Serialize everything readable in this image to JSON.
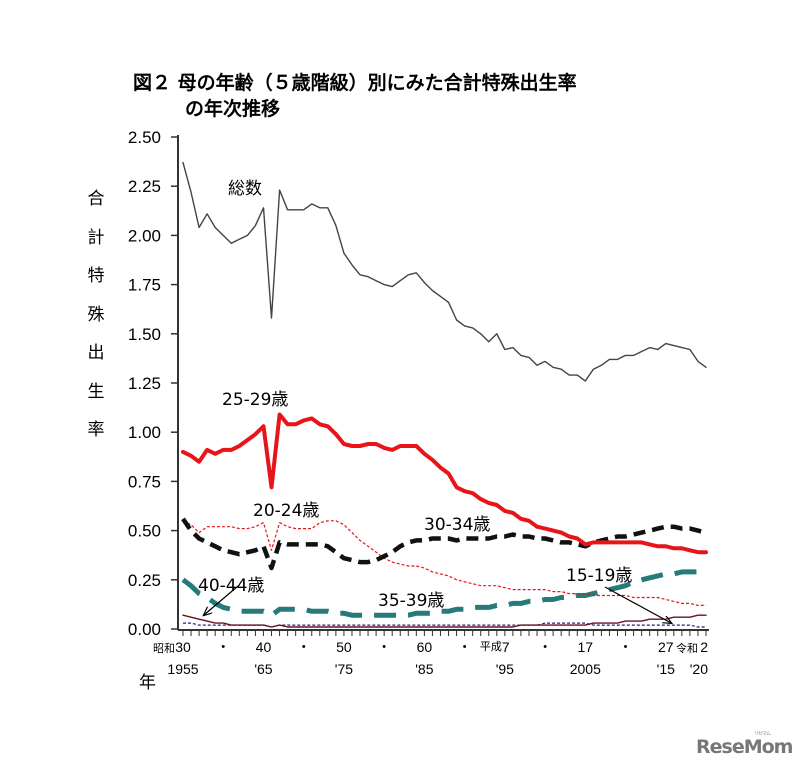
{
  "page": {
    "title_line1": "図２ 母の年齢（５歳階級）別にみた合計特殊出生率",
    "title_line2": "の年次推移",
    "y_axis_label_chars": [
      "合",
      "計",
      "特",
      "殊",
      "出",
      "生",
      "率"
    ],
    "x_axis_unit_label": "年",
    "logo_text": "ReseMom",
    "logo_ruby": "リセマム"
  },
  "chart_data": {
    "type": "line",
    "title": "図２ 母の年齢（５歳階級）別にみた合計特殊出生率の年次推移",
    "xlabel": "年",
    "ylabel": "合計特殊出生率",
    "ylim": [
      0,
      2.5
    ],
    "xlim": [
      1955,
      2020
    ],
    "y_ticks": [
      "0.00",
      "0.25",
      "0.50",
      "0.75",
      "1.00",
      "1.25",
      "1.50",
      "1.75",
      "2.00",
      "2.25",
      "2.50"
    ],
    "y_tick_values": [
      0,
      0.25,
      0.5,
      0.75,
      1.0,
      1.25,
      1.5,
      1.75,
      2.0,
      2.25,
      2.5
    ],
    "x_ticks_era": [
      {
        "year": 1955,
        "era_prefix": "昭和",
        "label": "30",
        "western": "1955"
      },
      {
        "year": 1960,
        "label": "・"
      },
      {
        "year": 1965,
        "label": "40",
        "western": "'65"
      },
      {
        "year": 1970,
        "label": "・"
      },
      {
        "year": 1975,
        "label": "50",
        "western": "'75"
      },
      {
        "year": 1980,
        "label": "・"
      },
      {
        "year": 1985,
        "label": "60",
        "western": "'85"
      },
      {
        "year": 1990,
        "label": "・"
      },
      {
        "year": 1995,
        "era_prefix": "平成",
        "label": "7",
        "western": "'95"
      },
      {
        "year": 2000,
        "label": "・"
      },
      {
        "year": 2005,
        "label": "17",
        "western": "2005"
      },
      {
        "year": 2010,
        "label": "・"
      },
      {
        "year": 2015,
        "label": "27",
        "western": "'15"
      },
      {
        "year": 2020,
        "era_prefix": "令和",
        "label": "2",
        "western": "'20"
      }
    ],
    "x": [
      1955,
      1956,
      1957,
      1958,
      1959,
      1960,
      1961,
      1962,
      1963,
      1964,
      1965,
      1966,
      1967,
      1968,
      1969,
      1970,
      1971,
      1972,
      1973,
      1974,
      1975,
      1976,
      1977,
      1978,
      1979,
      1980,
      1981,
      1982,
      1983,
      1984,
      1985,
      1986,
      1987,
      1988,
      1989,
      1990,
      1991,
      1992,
      1993,
      1994,
      1995,
      1996,
      1997,
      1998,
      1999,
      2000,
      2001,
      2002,
      2003,
      2004,
      2005,
      2006,
      2007,
      2008,
      2009,
      2010,
      2011,
      2012,
      2013,
      2014,
      2015,
      2016,
      2017,
      2018,
      2019,
      2020
    ],
    "series": [
      {
        "name": "総数",
        "label": "総数",
        "color": "#444444",
        "style": "solid-thin",
        "values": [
          2.37,
          2.22,
          2.04,
          2.11,
          2.04,
          2.0,
          1.96,
          1.98,
          2.0,
          2.05,
          2.14,
          1.58,
          2.23,
          2.13,
          2.13,
          2.13,
          2.16,
          2.14,
          2.14,
          2.05,
          1.91,
          1.85,
          1.8,
          1.79,
          1.77,
          1.75,
          1.74,
          1.77,
          1.8,
          1.81,
          1.76,
          1.72,
          1.69,
          1.66,
          1.57,
          1.54,
          1.53,
          1.5,
          1.46,
          1.5,
          1.42,
          1.43,
          1.39,
          1.38,
          1.34,
          1.36,
          1.33,
          1.32,
          1.29,
          1.29,
          1.26,
          1.32,
          1.34,
          1.37,
          1.37,
          1.39,
          1.39,
          1.41,
          1.43,
          1.42,
          1.45,
          1.44,
          1.43,
          1.42,
          1.36,
          1.33
        ]
      },
      {
        "name": "25-29歳",
        "label": "25-29歳",
        "color": "#e8141a",
        "style": "solid-thick",
        "values": [
          0.9,
          0.88,
          0.85,
          0.91,
          0.89,
          0.91,
          0.91,
          0.93,
          0.96,
          0.99,
          1.03,
          0.72,
          1.09,
          1.04,
          1.04,
          1.06,
          1.07,
          1.04,
          1.03,
          0.99,
          0.94,
          0.93,
          0.93,
          0.94,
          0.94,
          0.92,
          0.91,
          0.93,
          0.93,
          0.93,
          0.89,
          0.86,
          0.82,
          0.79,
          0.72,
          0.7,
          0.69,
          0.66,
          0.64,
          0.63,
          0.6,
          0.59,
          0.56,
          0.55,
          0.52,
          0.51,
          0.5,
          0.49,
          0.47,
          0.46,
          0.43,
          0.44,
          0.44,
          0.44,
          0.44,
          0.44,
          0.44,
          0.44,
          0.43,
          0.42,
          0.42,
          0.41,
          0.41,
          0.4,
          0.39,
          0.39
        ]
      },
      {
        "name": "20-24歳",
        "label": "20-24歳",
        "color": "#e8141a",
        "style": "dashed-thin",
        "values": [
          0.55,
          0.53,
          0.49,
          0.52,
          0.52,
          0.52,
          0.52,
          0.51,
          0.51,
          0.52,
          0.54,
          0.4,
          0.54,
          0.52,
          0.51,
          0.51,
          0.51,
          0.54,
          0.55,
          0.55,
          0.53,
          0.49,
          0.45,
          0.42,
          0.39,
          0.36,
          0.34,
          0.33,
          0.32,
          0.32,
          0.31,
          0.29,
          0.28,
          0.27,
          0.25,
          0.24,
          0.23,
          0.22,
          0.22,
          0.22,
          0.21,
          0.2,
          0.2,
          0.2,
          0.2,
          0.2,
          0.19,
          0.19,
          0.18,
          0.18,
          0.18,
          0.17,
          0.17,
          0.17,
          0.17,
          0.17,
          0.16,
          0.16,
          0.16,
          0.16,
          0.15,
          0.14,
          0.13,
          0.13,
          0.12,
          0.12
        ]
      },
      {
        "name": "30-34歳",
        "label": "30-34歳",
        "color": "#111111",
        "style": "dashed-thick",
        "values": [
          0.56,
          0.5,
          0.46,
          0.44,
          0.42,
          0.4,
          0.39,
          0.38,
          0.39,
          0.4,
          0.42,
          0.31,
          0.44,
          0.43,
          0.43,
          0.43,
          0.43,
          0.43,
          0.42,
          0.39,
          0.36,
          0.35,
          0.34,
          0.34,
          0.35,
          0.37,
          0.39,
          0.42,
          0.44,
          0.45,
          0.45,
          0.46,
          0.46,
          0.46,
          0.45,
          0.46,
          0.46,
          0.46,
          0.46,
          0.47,
          0.47,
          0.48,
          0.47,
          0.47,
          0.46,
          0.46,
          0.45,
          0.44,
          0.44,
          0.43,
          0.42,
          0.44,
          0.45,
          0.46,
          0.47,
          0.47,
          0.48,
          0.49,
          0.5,
          0.51,
          0.52,
          0.52,
          0.51,
          0.51,
          0.5,
          0.49
        ]
      },
      {
        "name": "35-39歳",
        "label": "35-39歳",
        "color": "#267a7a",
        "style": "longdash-thick",
        "values": [
          0.25,
          0.22,
          0.18,
          0.16,
          0.13,
          0.11,
          0.1,
          0.09,
          0.09,
          0.09,
          0.09,
          0.07,
          0.1,
          0.1,
          0.1,
          0.1,
          0.09,
          0.09,
          0.09,
          0.08,
          0.08,
          0.07,
          0.07,
          0.07,
          0.07,
          0.07,
          0.07,
          0.07,
          0.07,
          0.08,
          0.08,
          0.08,
          0.09,
          0.09,
          0.1,
          0.1,
          0.11,
          0.11,
          0.11,
          0.12,
          0.12,
          0.13,
          0.13,
          0.14,
          0.14,
          0.15,
          0.15,
          0.16,
          0.16,
          0.17,
          0.17,
          0.18,
          0.19,
          0.2,
          0.21,
          0.22,
          0.24,
          0.25,
          0.26,
          0.27,
          0.28,
          0.28,
          0.29,
          0.29,
          0.29,
          0.29
        ]
      },
      {
        "name": "40-44歳",
        "label": "40-44歳",
        "color": "#6b1020",
        "style": "solid-thin",
        "values": [
          0.07,
          0.06,
          0.05,
          0.04,
          0.03,
          0.03,
          0.02,
          0.02,
          0.02,
          0.02,
          0.02,
          0.01,
          0.02,
          0.01,
          0.01,
          0.01,
          0.01,
          0.01,
          0.01,
          0.01,
          0.01,
          0.01,
          0.01,
          0.01,
          0.01,
          0.01,
          0.01,
          0.01,
          0.01,
          0.01,
          0.01,
          0.01,
          0.01,
          0.01,
          0.01,
          0.01,
          0.01,
          0.01,
          0.01,
          0.01,
          0.01,
          0.01,
          0.02,
          0.02,
          0.02,
          0.02,
          0.02,
          0.02,
          0.02,
          0.02,
          0.02,
          0.03,
          0.03,
          0.03,
          0.03,
          0.04,
          0.04,
          0.04,
          0.05,
          0.05,
          0.05,
          0.06,
          0.06,
          0.06,
          0.07,
          0.07
        ]
      },
      {
        "name": "15-19歳",
        "label": "15-19歳",
        "color": "#1a237e",
        "style": "dashed-thin",
        "values": [
          0.03,
          0.03,
          0.02,
          0.02,
          0.02,
          0.02,
          0.02,
          0.02,
          0.02,
          0.02,
          0.02,
          0.01,
          0.02,
          0.02,
          0.02,
          0.02,
          0.02,
          0.02,
          0.02,
          0.02,
          0.02,
          0.02,
          0.02,
          0.02,
          0.02,
          0.02,
          0.02,
          0.02,
          0.02,
          0.02,
          0.02,
          0.02,
          0.02,
          0.02,
          0.02,
          0.02,
          0.02,
          0.02,
          0.02,
          0.02,
          0.02,
          0.02,
          0.02,
          0.02,
          0.02,
          0.03,
          0.03,
          0.03,
          0.03,
          0.03,
          0.03,
          0.02,
          0.02,
          0.02,
          0.02,
          0.02,
          0.02,
          0.02,
          0.02,
          0.02,
          0.02,
          0.02,
          0.02,
          0.02,
          0.01,
          0.01
        ]
      }
    ]
  }
}
